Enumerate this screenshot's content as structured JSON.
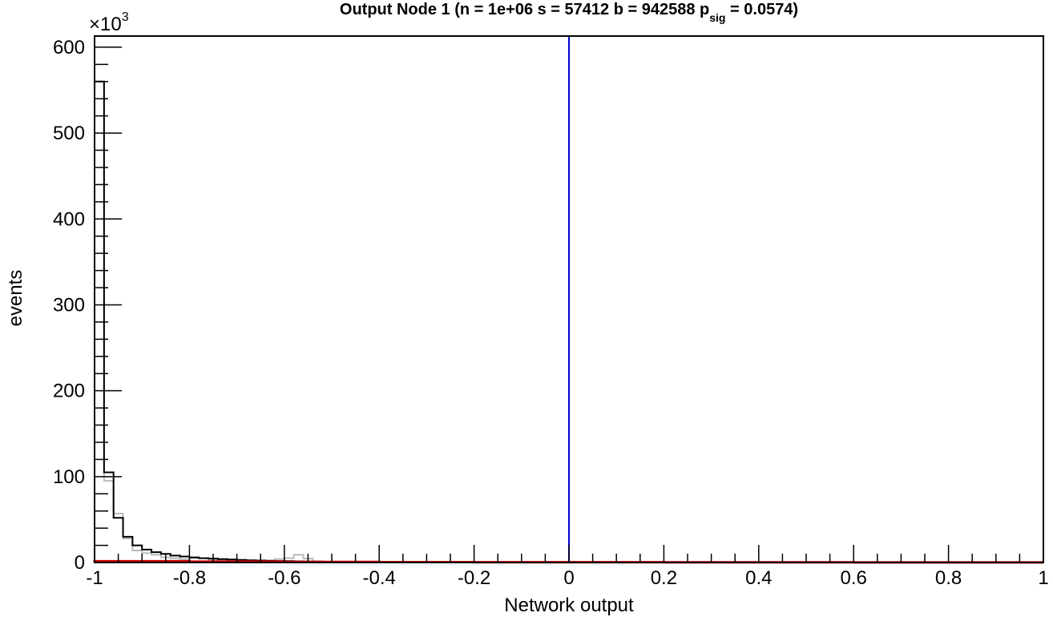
{
  "chart_data": {
    "type": "histogram",
    "title_main": "Output Node 1 (n = 1e+06  s = 57412  b = 942588  p",
    "title_sub": "sig",
    "title_tail": " = 0.0574)",
    "xlabel": "Network output",
    "ylabel": "events",
    "y_multiplier": "×10",
    "y_multiplier_exp": "3",
    "xlim": [
      -1,
      1
    ],
    "ylim": [
      0,
      613000
    ],
    "x_ticks": [
      -1,
      -0.8,
      -0.6,
      -0.4,
      -0.2,
      0,
      0.2,
      0.4,
      0.6,
      0.8,
      1
    ],
    "x_tick_labels": [
      "-1",
      "-0.8",
      "-0.6",
      "-0.4",
      "-0.2",
      "0",
      "0.2",
      "0.4",
      "0.6",
      "0.8",
      "1"
    ],
    "y_ticks": [
      0,
      100000,
      200000,
      300000,
      400000,
      500000,
      600000
    ],
    "y_tick_labels": [
      "0",
      "100",
      "200",
      "300",
      "400",
      "500",
      "600"
    ],
    "cut_line_x": 0,
    "bin_width": 0.02,
    "series": [
      {
        "role": "total",
        "color": "#000000",
        "bin_low_edges": [
          -1.0,
          -0.98,
          -0.96,
          -0.94,
          -0.92,
          -0.9,
          -0.88,
          -0.86,
          -0.84,
          -0.82,
          -0.8,
          -0.78,
          -0.76,
          -0.74,
          -0.72,
          -0.7,
          -0.68,
          -0.66,
          -0.64,
          -0.62,
          -0.6,
          -0.58,
          -0.56,
          -0.54,
          -0.52,
          -0.5,
          -0.48,
          -0.46,
          -0.44,
          -0.42,
          -0.4
        ],
        "values": [
          560000,
          105000,
          52000,
          30000,
          20000,
          15000,
          12000,
          10000,
          8000,
          7000,
          6000,
          5000,
          4500,
          4000,
          3500,
          3000,
          2600,
          2300,
          2000,
          1800,
          1600,
          1400,
          1200,
          1000,
          900,
          800,
          700,
          600,
          500,
          400,
          300
        ]
      },
      {
        "role": "comparison",
        "color": "#bbbbbb",
        "bin_low_edges": [
          -1.0,
          -0.98,
          -0.96,
          -0.94,
          -0.92,
          -0.9,
          -0.88,
          -0.86,
          -0.84,
          -0.82,
          -0.8,
          -0.78,
          -0.76,
          -0.74,
          -0.72,
          -0.7,
          -0.68,
          -0.66,
          -0.64,
          -0.62,
          -0.6,
          -0.58,
          -0.56,
          -0.54,
          -0.52,
          -0.5,
          -0.48,
          -0.46,
          -0.44,
          -0.42,
          -0.4
        ],
        "values": [
          560000,
          95000,
          57000,
          28000,
          14000,
          11000,
          9000,
          6000,
          5000,
          4000,
          5000,
          5000,
          3000,
          2500,
          1500,
          1500,
          1000,
          1500,
          2500,
          4000,
          5000,
          9000,
          4500,
          1500,
          800,
          500,
          300,
          200,
          150,
          100,
          80
        ]
      },
      {
        "role": "signal",
        "color": "#cc0000",
        "bin_low_edges": [
          -1.0,
          -0.8,
          -0.6,
          -0.4,
          -0.2,
          0.0,
          0.2,
          0.4,
          0.6,
          0.8
        ],
        "values": [
          1500,
          1000,
          700,
          500,
          400,
          300,
          250,
          200,
          150,
          100
        ]
      }
    ]
  }
}
